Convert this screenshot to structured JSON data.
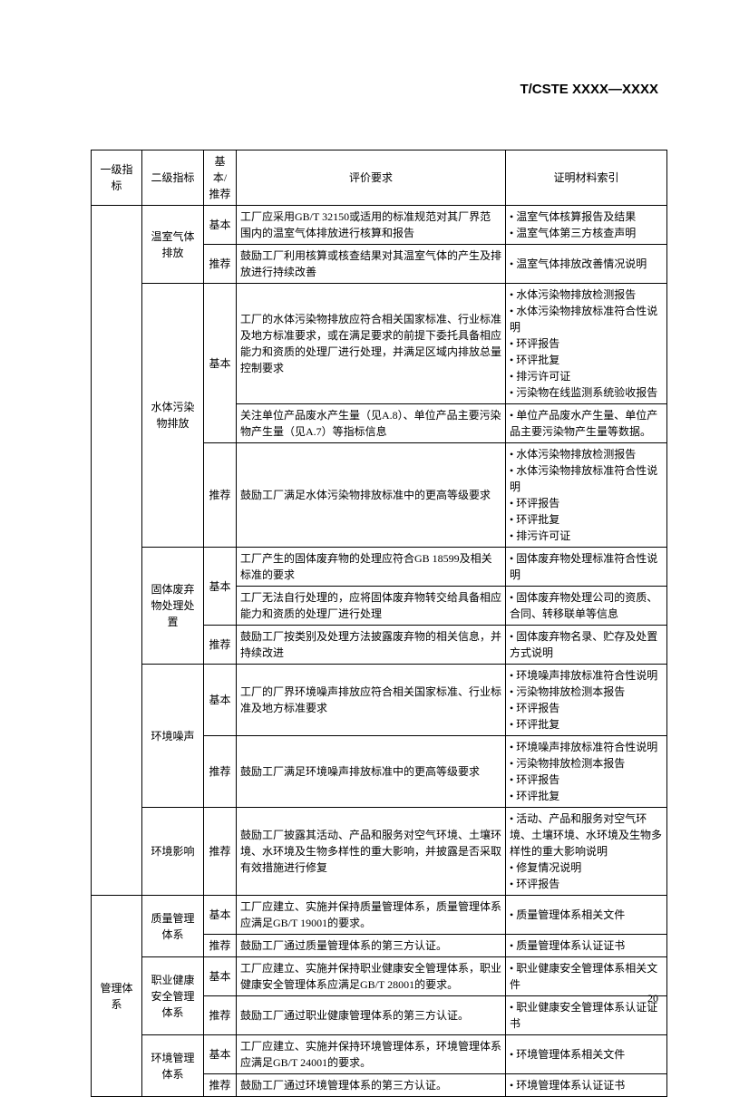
{
  "header": "T/CSTE XXXX—XXXX",
  "pageNumber": "20",
  "tableHeaders": {
    "c1": "一级指标",
    "c2": "二级指标",
    "c3": "基本/推荐",
    "c4": "评价要求",
    "c5": "证明材料索引"
  },
  "labels": {
    "basic": "基本",
    "recommend": "推荐"
  },
  "l1": {
    "mgmt": "管理体系"
  },
  "l2": {
    "ghg": "温室气体排放",
    "water": "水体污染物排放",
    "solid": "固体废弃物处理处置",
    "noise": "环境噪声",
    "envImpact": "环境影响",
    "quality": "质量管理体系",
    "ohs": "职业健康安全管理体系",
    "env": "环境管理体系"
  },
  "r": {
    "r1c4": "工厂应采用GB/T 32150或适用的标准规范对其厂界范围内的温室气体排放进行核算和报告",
    "r1c5": "• 温室气体核算报告及结果\n• 温室气体第三方核查声明",
    "r2c4": "鼓励工厂利用核算或核查结果对其温室气体的产生及排放进行持续改善",
    "r2c5": "• 温室气体排放改善情况说明",
    "r3c4": "工厂的水体污染物排放应符合相关国家标准、行业标准及地方标准要求，或在满足要求的前提下委托具备相应能力和资质的处理厂进行处理，并满足区域内排放总量控制要求",
    "r3c5": "• 水体污染物排放检测报告\n• 水体污染物排放标准符合性说明\n• 环评报告\n• 环评批复\n• 排污许可证\n• 污染物在线监测系统验收报告",
    "r4c4": "关注单位产品废水产生量（见A.8）、单位产品主要污染物产生量（见A.7）等指标信息",
    "r4c5": "• 单位产品废水产生量、单位产品主要污染物产生量等数据。",
    "r5c4": "鼓励工厂满足水体污染物排放标准中的更高等级要求",
    "r5c5": "• 水体污染物排放检测报告\n• 水体污染物排放标准符合性说明\n• 环评报告\n• 环评批复\n• 排污许可证",
    "r6c4": "工厂产生的固体废弃物的处理应符合GB 18599及相关标准的要求",
    "r6c5": "• 固体废弃物处理标准符合性说明",
    "r7c4": "工厂无法自行处理的，应将固体废弃物转交给具备相应能力和资质的处理厂进行处理",
    "r7c5": "• 固体废弃物处理公司的资质、合同、转移联单等信息",
    "r8c4": "鼓励工厂按类别及处理方法披露废弃物的相关信息，并持续改进",
    "r8c5": "• 固体废弃物名录、贮存及处置方式说明",
    "r9c4": "工厂的厂界环境噪声排放应符合相关国家标准、行业标准及地方标准要求",
    "r9c5": "• 环境噪声排放标准符合性说明\n• 污染物排放检测本报告\n• 环评报告\n• 环评批复",
    "r10c4": "鼓励工厂满足环境噪声排放标准中的更高等级要求",
    "r10c5": "• 环境噪声排放标准符合性说明\n• 污染物排放检测本报告\n• 环评报告\n• 环评批复",
    "r11c4": "鼓励工厂披露其活动、产品和服务对空气环境、土壤环境、水环境及生物多样性的重大影响，并披露是否采取有效措施进行修复",
    "r11c5": "• 活动、产品和服务对空气环境、土壤环境、水环境及生物多样性的重大影响说明\n• 修复情况说明\n• 环评报告",
    "r12c4": "工厂应建立、实施并保持质量管理体系，质量管理体系应满足GB/T 19001的要求。",
    "r12c5": "• 质量管理体系相关文件",
    "r13c4": "鼓励工厂通过质量管理体系的第三方认证。",
    "r13c5": "• 质量管理体系认证证书",
    "r14c4": "工厂应建立、实施并保持职业健康安全管理体系，职业健康安全管理体系应满足GB/T 28001的要求。",
    "r14c5": "• 职业健康安全管理体系相关文件",
    "r15c4": "鼓励工厂通过职业健康管理体系的第三方认证。",
    "r15c5": "• 职业健康安全管理体系认证证书",
    "r16c4": "工厂应建立、实施并保持环境管理体系，环境管理体系应满足GB/T 24001的要求。",
    "r16c5": "• 环境管理体系相关文件",
    "r17c4": "鼓励工厂通过环境管理体系的第三方认证。",
    "r17c5": "• 环境管理体系认证证书"
  }
}
